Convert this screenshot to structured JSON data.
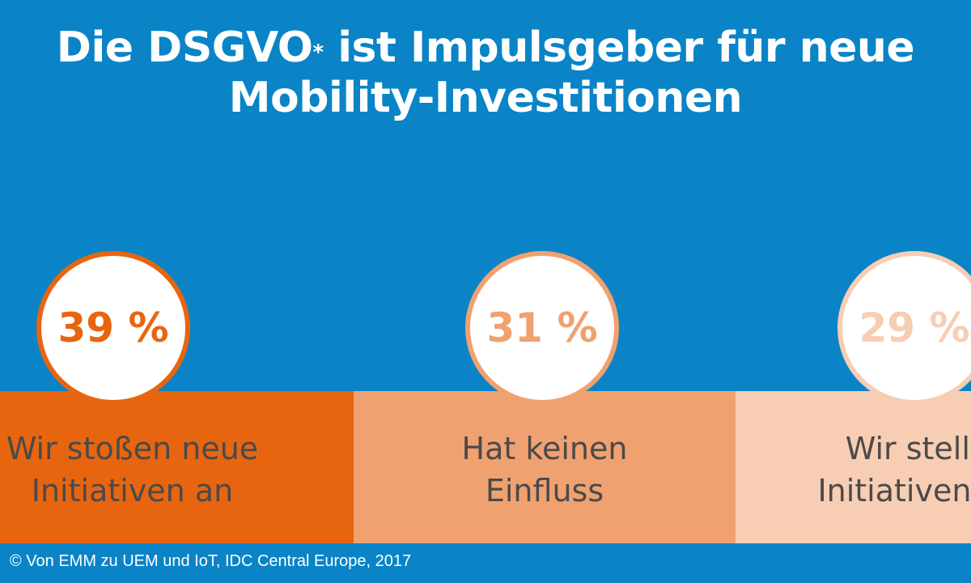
{
  "title": {
    "main": "Die DSGVO",
    "sup": "*",
    "rest": "ist Impulsgeber für neue",
    "line2": "Mobility-Investitionen"
  },
  "colors": {
    "background": "#0a84c6",
    "series1": "#e8650f",
    "series2": "#f0a170",
    "series3": "#f7cdb3",
    "text": "#4a4a4a"
  },
  "chart_data": {
    "type": "bar",
    "title": "Die DSGVO* ist Impulsgeber für neue Mobility-Investitionen",
    "unit": "%",
    "categories": [
      "Wir stoßen neue Initiativen an",
      "Hat keinen Einfluss",
      "Wir stellen Initiativen zurück"
    ],
    "visible_category_lines": [
      [
        "Wir stoßen neue",
        "Initiativen an"
      ],
      [
        "Hat keinen",
        "Einfluss"
      ],
      [
        "Wir stelle",
        "Initiativen zu"
      ]
    ],
    "value_labels": [
      "39 %",
      "31 %",
      "29 %"
    ],
    "values": [
      39,
      31,
      29
    ]
  },
  "credit": "© Von EMM zu UEM und IoT, IDC Central Europe, 2017"
}
